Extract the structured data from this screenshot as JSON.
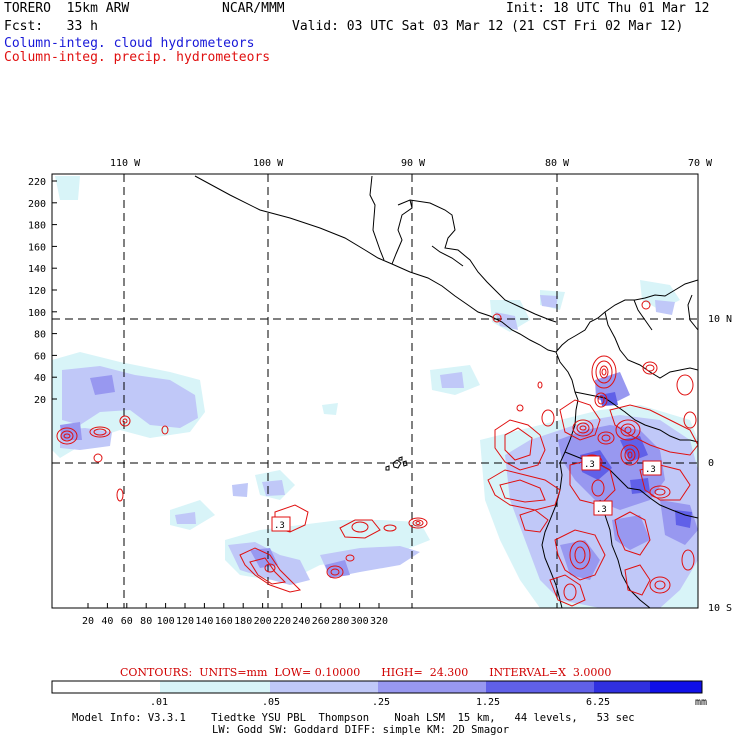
{
  "header": {
    "model": "TORERO  15km ARW",
    "org": "NCAR/MMM",
    "init": "Init: 18 UTC Thu 01 Mar 12",
    "fcst": "Fcst:   33 h",
    "valid": "Valid: 03 UTC Sat 03 Mar 12 (21 CST Fri 02 Mar 12)",
    "field_cloud": "Column-integ. cloud hydrometeors",
    "field_precip": "Column-integ. precip. hydrometeors",
    "cloud_color": "#1818d8",
    "precip_color": "#e01010"
  },
  "map": {
    "lon_labels": [
      "110 W",
      "100 W",
      "90 W",
      "80 W",
      "70 W"
    ],
    "lat_labels": [
      "10 N",
      "0",
      "10 S"
    ],
    "y_ticks": [
      "220",
      "200",
      "180",
      "160",
      "140",
      "120",
      "100",
      "80",
      "60",
      "40",
      "20"
    ],
    "x_ticks": [
      "20",
      "40",
      "60",
      "80",
      "100",
      "120",
      "140",
      "160",
      "180",
      "200",
      "220",
      "240",
      "260",
      "280",
      "300",
      "320"
    ],
    "contour_box_labels": [
      ".3",
      ".3",
      ".3",
      ".3"
    ],
    "grid": "dashed",
    "coastline_color": "#000000"
  },
  "contours": {
    "text": "CONTOURS:  UNITS=mm  LOW= 0.10000      HIGH=  24.300      INTERVAL=X  3.0000"
  },
  "colorbar": {
    "labels": [
      ".01",
      ".05",
      ".25",
      "1.25",
      "6.25"
    ],
    "units": "mm",
    "colors": [
      "#ffffff",
      "#d8f4f8",
      "#c0c8f8",
      "#9898f0",
      "#6060e8",
      "#3030e0",
      "#1010e8"
    ]
  },
  "model_info": {
    "line1": "Model Info: V3.3.1    Tiedtke YSU PBL  Thompson    Noah LSM  15 km,   44 levels,   53 sec",
    "line2": "LW: Godd SW: Goddard DIFF: simple KM: 2D Smagor"
  }
}
